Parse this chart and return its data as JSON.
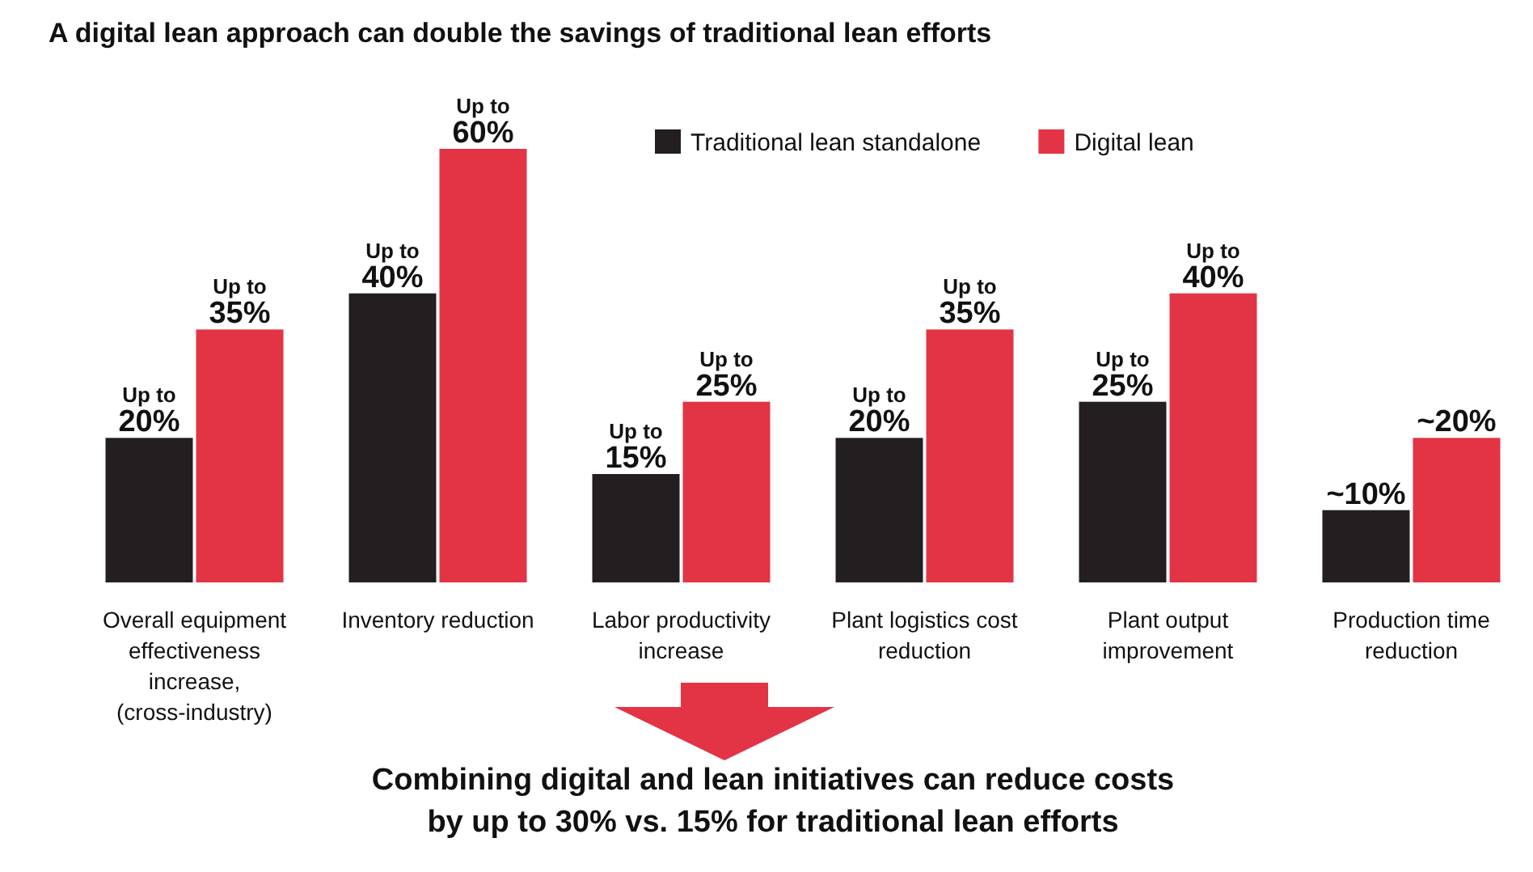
{
  "chart_data": {
    "type": "bar",
    "title": "A digital lean approach can double the savings of traditional lean efforts",
    "categories": [
      "Overall equipment effectiveness increase, (cross-industry)",
      "Inventory reduction",
      "Labor productivity increase",
      "Plant logistics cost reduction",
      "Plant output improvement",
      "Production time reduction"
    ],
    "series": [
      {
        "name": "Traditional lean standalone",
        "color": "#231f20",
        "values": [
          20,
          40,
          15,
          20,
          25,
          10
        ],
        "value_labels": [
          "Up to 20%",
          "Up to 40%",
          "Up to 15%",
          "Up to 20%",
          "Up to 25%",
          "~10%"
        ]
      },
      {
        "name": "Digital lean",
        "color": "#e23445",
        "values": [
          35,
          60,
          25,
          35,
          40,
          20
        ],
        "value_labels": [
          "Up to 35%",
          "Up to 60%",
          "Up to 25%",
          "Up to 35%",
          "Up to 40%",
          "~20%"
        ]
      }
    ],
    "legend": "top right",
    "annotations": [
      "Combining digital and lean initiatives can reduce costs by up to 30% vs. 15% for traditional lean efforts"
    ]
  }
}
